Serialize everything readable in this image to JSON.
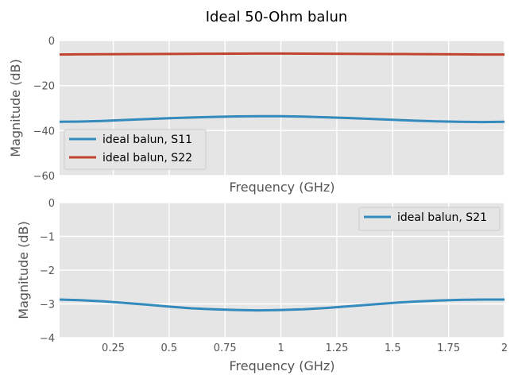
{
  "chart_data": {
    "type": "line",
    "title": "Ideal 50-Ohm balun",
    "subplots": [
      {
        "xlabel": "Frequency (GHz)",
        "ylabel": "Magnitude (dB)",
        "xlim": [
          0.01,
          2.0
        ],
        "ylim": [
          -60,
          0
        ],
        "yticks": [
          0,
          -20,
          -40,
          -60
        ],
        "ytick_labels": [
          "0",
          "−20",
          "−40",
          "−60"
        ],
        "show_xtick_labels": false,
        "grid": true,
        "legend_position": "lower-left",
        "x": [
          0.01,
          0.1,
          0.2,
          0.3,
          0.4,
          0.5,
          0.6,
          0.7,
          0.8,
          0.9,
          1.0,
          1.1,
          1.2,
          1.3,
          1.4,
          1.5,
          1.6,
          1.7,
          1.8,
          1.9,
          2.0
        ],
        "series": [
          {
            "name": "ideal balun, S11",
            "color": "#348abd",
            "values": [
              -36.1,
              -36.0,
              -35.7,
              -35.3,
              -34.9,
              -34.5,
              -34.2,
              -33.9,
              -33.7,
              -33.6,
              -33.6,
              -33.8,
              -34.1,
              -34.4,
              -34.8,
              -35.2,
              -35.6,
              -35.9,
              -36.1,
              -36.2,
              -36.1
            ]
          },
          {
            "name": "ideal balun, S22",
            "color": "#c1432f",
            "values": [
              -6.2,
              -6.15,
              -6.1,
              -6.05,
              -6.0,
              -5.95,
              -5.9,
              -5.85,
              -5.82,
              -5.8,
              -5.8,
              -5.82,
              -5.85,
              -5.9,
              -5.95,
              -6.0,
              -6.05,
              -6.1,
              -6.15,
              -6.2,
              -6.2
            ]
          }
        ]
      },
      {
        "xlabel": "Frequency (GHz)",
        "ylabel": "Magnitude (dB)",
        "xlim": [
          0.01,
          2.0
        ],
        "ylim": [
          -4,
          0
        ],
        "xticks": [
          0.25,
          0.5,
          0.75,
          1.0,
          1.25,
          1.5,
          1.75,
          2.0
        ],
        "xtick_labels": [
          "0.25",
          "0.5",
          "0.75",
          "1",
          "1.25",
          "1.5",
          "1.75",
          "2"
        ],
        "yticks": [
          0,
          -1,
          -2,
          -3,
          -4
        ],
        "ytick_labels": [
          "0",
          "−1",
          "−2",
          "−3",
          "−4"
        ],
        "show_xtick_labels": true,
        "grid": true,
        "legend_position": "upper-right",
        "x": [
          0.01,
          0.1,
          0.2,
          0.3,
          0.4,
          0.5,
          0.6,
          0.7,
          0.8,
          0.9,
          1.0,
          1.1,
          1.2,
          1.3,
          1.4,
          1.5,
          1.6,
          1.7,
          1.8,
          1.9,
          2.0
        ],
        "series": [
          {
            "name": "ideal balun, S21",
            "color": "#348abd",
            "values": [
              -2.87,
              -2.89,
              -2.92,
              -2.97,
              -3.02,
              -3.08,
              -3.13,
              -3.16,
              -3.18,
              -3.19,
              -3.18,
              -3.16,
              -3.12,
              -3.07,
              -3.02,
              -2.97,
              -2.93,
              -2.9,
              -2.88,
              -2.87,
              -2.87
            ]
          }
        ]
      }
    ]
  }
}
